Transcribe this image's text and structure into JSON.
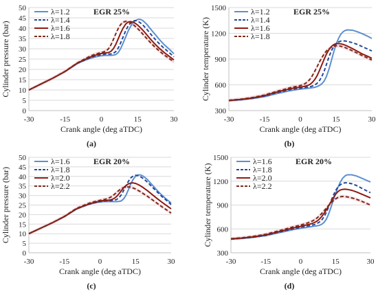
{
  "colors": {
    "blue_solid": "#5b8fd0",
    "navy_dashed": "#23479a",
    "dark_red_solid": "#8e1a12",
    "brown_dashed": "#7a2a16",
    "grid": "#d9d9d9",
    "band": "#f3c6d4"
  },
  "chart_data": [
    {
      "type": "line",
      "title": "EGR 25%",
      "caption": "(a)",
      "xlabel": "Crank angle (deg aTDC)",
      "ylabel": "Cylinder pressure (bar)",
      "xlim": [
        -30,
        30
      ],
      "ylim": [
        0,
        50
      ],
      "xticks": [
        -30,
        -15,
        0,
        15,
        30
      ],
      "yticks": [
        0,
        5,
        10,
        15,
        20,
        25,
        30,
        35,
        40,
        45,
        50
      ],
      "grid": true,
      "legend": "top-left",
      "x": [
        -30,
        -25,
        -20,
        -15,
        -10,
        -7,
        -5,
        -3,
        -1,
        0,
        1,
        2,
        3,
        4,
        5,
        6,
        7,
        8,
        9,
        10,
        11,
        12,
        13,
        14,
        15,
        16,
        17,
        18,
        19,
        20,
        22,
        24,
        26,
        28,
        30
      ],
      "series": [
        {
          "name": "λ=1.2",
          "color": "#5b8fd0",
          "dash": "solid",
          "values": [
            10,
            12.9,
            15.8,
            19,
            22.8,
            24.3,
            25.2,
            25.9,
            26.4,
            26.6,
            26.7,
            26.8,
            26.8,
            26.8,
            26.9,
            27.2,
            28.2,
            30.1,
            32.8,
            35.6,
            38.4,
            40.7,
            42.5,
            43.6,
            44.2,
            44.3,
            43.8,
            42.8,
            41.6,
            40.1,
            37.3,
            34.5,
            32,
            29.9,
            27.6
          ]
        },
        {
          "name": "λ=1.4",
          "color": "#23479a",
          "dash": "dashed",
          "values": [
            10,
            12.9,
            15.8,
            19,
            22.9,
            24.5,
            25.5,
            26.3,
            26.9,
            27.1,
            27.3,
            27.4,
            27.4,
            27.5,
            27.8,
            28.7,
            30.4,
            32.9,
            35.8,
            38.6,
            40.9,
            42.5,
            43.4,
            43.7,
            43.4,
            42.7,
            41.7,
            40.5,
            39.2,
            37.7,
            34.9,
            32.4,
            30.2,
            28.2,
            26.1
          ]
        },
        {
          "name": "λ=1.6",
          "color": "#8e1a12",
          "dash": "solid",
          "values": [
            10,
            12.9,
            15.8,
            19,
            23,
            24.7,
            25.8,
            26.7,
            27.4,
            27.7,
            27.9,
            28,
            28.2,
            28.8,
            30.1,
            32.2,
            34.9,
            37.7,
            40.1,
            41.9,
            42.9,
            43.2,
            43,
            42.4,
            41.5,
            40.4,
            39.2,
            37.9,
            36.5,
            35.1,
            32.5,
            30.2,
            28.2,
            26.4,
            24.6
          ]
        },
        {
          "name": "λ=1.8",
          "color": "#7a2a16",
          "dash": "dashed",
          "values": [
            10,
            12.9,
            15.8,
            19.1,
            23.1,
            25,
            26.2,
            27.2,
            27.9,
            28.2,
            28.5,
            29,
            30.1,
            32,
            34.6,
            37.4,
            39.9,
            41.8,
            42.9,
            43.3,
            43.2,
            42.7,
            41.9,
            40.9,
            39.8,
            38.6,
            37.3,
            36,
            34.7,
            33.4,
            31,
            28.9,
            27,
            25.3,
            23.7
          ]
        }
      ]
    },
    {
      "type": "line",
      "title": "EGR 25%",
      "caption": "(b)",
      "xlabel": "Crank angle (deg aTDC)",
      "ylabel": "Cylinder temperature (K)",
      "xlim": [
        -30,
        30
      ],
      "ylim": [
        300,
        1500
      ],
      "xticks": [
        -30,
        -15,
        0,
        15,
        30
      ],
      "yticks": [
        300,
        600,
        900,
        1200,
        1500
      ],
      "grid": true,
      "legend": "top-left",
      "x": [
        -30,
        -25,
        -20,
        -15,
        -10,
        -7,
        -5,
        -3,
        -1,
        0,
        1,
        2,
        3,
        4,
        5,
        6,
        7,
        8,
        9,
        10,
        11,
        12,
        13,
        14,
        15,
        16,
        17,
        18,
        19,
        20,
        22,
        24,
        26,
        28,
        30
      ],
      "series": [
        {
          "name": "λ=1.2",
          "color": "#5b8fd0",
          "dash": "solid",
          "values": [
            415,
            425,
            440,
            462,
            497,
            515,
            528,
            538,
            546,
            550,
            553,
            556,
            559,
            562,
            566,
            571,
            579,
            592,
            612,
            645,
            700,
            780,
            880,
            980,
            1070,
            1140,
            1190,
            1220,
            1235,
            1240,
            1235,
            1218,
            1195,
            1170,
            1140
          ]
        },
        {
          "name": "λ=1.4",
          "color": "#23479a",
          "dash": "dashed",
          "values": [
            417,
            428,
            445,
            470,
            508,
            527,
            540,
            550,
            557,
            561,
            565,
            569,
            573,
            578,
            586,
            598,
            617,
            648,
            695,
            760,
            840,
            925,
            995,
            1045,
            1080,
            1100,
            1110,
            1112,
            1110,
            1105,
            1090,
            1070,
            1045,
            1020,
            995
          ]
        },
        {
          "name": "λ=1.6",
          "color": "#8e1a12",
          "dash": "solid",
          "values": [
            418,
            430,
            448,
            475,
            515,
            536,
            550,
            561,
            569,
            574,
            578,
            584,
            592,
            605,
            627,
            660,
            705,
            765,
            832,
            900,
            960,
            1010,
            1045,
            1068,
            1080,
            1082,
            1078,
            1070,
            1060,
            1048,
            1020,
            990,
            960,
            935,
            910
          ]
        },
        {
          "name": "λ=1.8",
          "color": "#7a2a16",
          "dash": "dashed",
          "values": [
            420,
            433,
            453,
            482,
            523,
            546,
            562,
            575,
            585,
            592,
            601,
            614,
            634,
            664,
            705,
            755,
            810,
            865,
            915,
            960,
            995,
            1020,
            1038,
            1050,
            1055,
            1055,
            1050,
            1042,
            1032,
            1020,
            995,
            968,
            940,
            915,
            890
          ]
        }
      ]
    },
    {
      "type": "line",
      "title": "EGR 20%",
      "caption": "(c)",
      "xlabel": "Crank angle (deg aTDC)",
      "ylabel": "Cylinder pressure (bar)",
      "xlim": [
        -30,
        30
      ],
      "ylim": [
        0,
        50
      ],
      "xticks": [
        -30,
        -15,
        0,
        15,
        30
      ],
      "yticks": [
        0,
        5,
        10,
        15,
        20,
        25,
        30,
        35,
        40,
        45,
        50
      ],
      "grid": true,
      "legend": "top-left",
      "x": [
        -30,
        -25,
        -20,
        -15,
        -10,
        -7,
        -5,
        -3,
        -1,
        0,
        1,
        2,
        3,
        4,
        5,
        6,
        7,
        8,
        9,
        10,
        11,
        12,
        13,
        14,
        15,
        16,
        17,
        18,
        19,
        20,
        22,
        24,
        26,
        28,
        30
      ],
      "series": [
        {
          "name": "λ=1.6",
          "color": "#5b8fd0",
          "dash": "solid",
          "values": [
            10,
            12.9,
            15.8,
            19,
            22.8,
            24.3,
            25.2,
            25.9,
            26.4,
            26.6,
            26.7,
            26.8,
            26.8,
            26.8,
            26.8,
            26.8,
            26.8,
            26.9,
            27.2,
            28.3,
            30.3,
            33.1,
            36.1,
            38.5,
            40.1,
            40.8,
            40.8,
            40.3,
            39.4,
            38.3,
            35.6,
            32.8,
            30.3,
            28.1,
            26.1
          ]
        },
        {
          "name": "λ=1.8",
          "color": "#23479a",
          "dash": "dashed",
          "values": [
            10,
            12.9,
            15.8,
            19,
            22.9,
            24.4,
            25.3,
            26,
            26.6,
            26.8,
            27,
            27.1,
            27.2,
            27.2,
            27.3,
            27.5,
            27.9,
            28.8,
            30.4,
            32.7,
            35.2,
            37.5,
            39.2,
            40.2,
            40.6,
            40.4,
            39.9,
            39.1,
            38.1,
            37,
            34.5,
            32,
            29.6,
            27.5,
            25.3
          ]
        },
        {
          "name": "λ=2.0",
          "color": "#8e1a12",
          "dash": "solid",
          "values": [
            10,
            12.9,
            15.8,
            19,
            23,
            24.5,
            25.4,
            26.2,
            26.8,
            27.1,
            27.3,
            27.4,
            27.5,
            27.6,
            27.9,
            28.5,
            29.5,
            30.9,
            32.5,
            34.1,
            35.3,
            36.1,
            36.5,
            36.6,
            36.3,
            35.8,
            35.1,
            34.3,
            33.4,
            32.5,
            30.5,
            28.5,
            26.6,
            24.8,
            23
          ]
        },
        {
          "name": "λ=2.2",
          "color": "#7a2a16",
          "dash": "dashed",
          "values": [
            10,
            12.9,
            15.8,
            19.1,
            23.2,
            24.8,
            25.8,
            26.6,
            27.2,
            27.5,
            27.8,
            28,
            28.3,
            28.8,
            29.5,
            30.5,
            31.6,
            32.7,
            33.6,
            34.2,
            34.5,
            34.5,
            34.3,
            33.9,
            33.4,
            32.7,
            32,
            31.2,
            30.4,
            29.6,
            27.8,
            26,
            24.2,
            22.5,
            20.8
          ]
        }
      ]
    },
    {
      "type": "line",
      "title": "EGR 20%",
      "caption": "(d)",
      "xlabel": "Crank angle (deg aTDC)",
      "ylabel": "Cylinder temperature (K)",
      "xlim": [
        -30,
        30
      ],
      "ylim": [
        300,
        1500
      ],
      "xticks": [
        -30,
        -15,
        0,
        15,
        30
      ],
      "yticks": [
        300,
        600,
        900,
        1200,
        1500
      ],
      "grid": true,
      "legend": "top-left",
      "x": [
        -30,
        -25,
        -20,
        -15,
        -10,
        -7,
        -5,
        -3,
        -1,
        0,
        1,
        2,
        3,
        4,
        5,
        6,
        7,
        8,
        9,
        10,
        11,
        12,
        13,
        14,
        15,
        16,
        17,
        18,
        19,
        20,
        22,
        24,
        26,
        28,
        30
      ],
      "series": [
        {
          "name": "λ=1.6",
          "color": "#5b8fd0",
          "dash": "solid",
          "values": [
            470,
            480,
            494,
            515,
            548,
            566,
            580,
            592,
            602,
            608,
            613,
            618,
            622,
            626,
            630,
            634,
            638,
            645,
            658,
            680,
            720,
            785,
            870,
            960,
            1045,
            1120,
            1185,
            1235,
            1265,
            1280,
            1280,
            1265,
            1240,
            1215,
            1190
          ]
        },
        {
          "name": "λ=1.8",
          "color": "#23479a",
          "dash": "dashed",
          "values": [
            472,
            483,
            498,
            520,
            555,
            575,
            590,
            603,
            614,
            620,
            626,
            632,
            637,
            642,
            648,
            656,
            668,
            686,
            712,
            750,
            805,
            875,
            950,
            1020,
            1080,
            1125,
            1155,
            1172,
            1180,
            1180,
            1168,
            1145,
            1115,
            1085,
            1055
          ]
        },
        {
          "name": "λ=2.0",
          "color": "#8e1a12",
          "dash": "solid",
          "values": [
            474,
            486,
            502,
            525,
            562,
            583,
            599,
            613,
            625,
            632,
            639,
            646,
            653,
            660,
            669,
            681,
            698,
            722,
            754,
            793,
            838,
            888,
            940,
            990,
            1035,
            1068,
            1088,
            1097,
            1099,
            1097,
            1085,
            1065,
            1040,
            1015,
            990
          ]
        },
        {
          "name": "λ=2.2",
          "color": "#7a2a16",
          "dash": "dashed",
          "values": [
            477,
            490,
            508,
            533,
            572,
            595,
            612,
            628,
            641,
            649,
            657,
            666,
            675,
            686,
            699,
            716,
            737,
            763,
            793,
            826,
            861,
            895,
            927,
            955,
            978,
            994,
            1004,
            1008,
            1007,
            1003,
            990,
            972,
            950,
            925,
            900
          ]
        }
      ]
    }
  ]
}
